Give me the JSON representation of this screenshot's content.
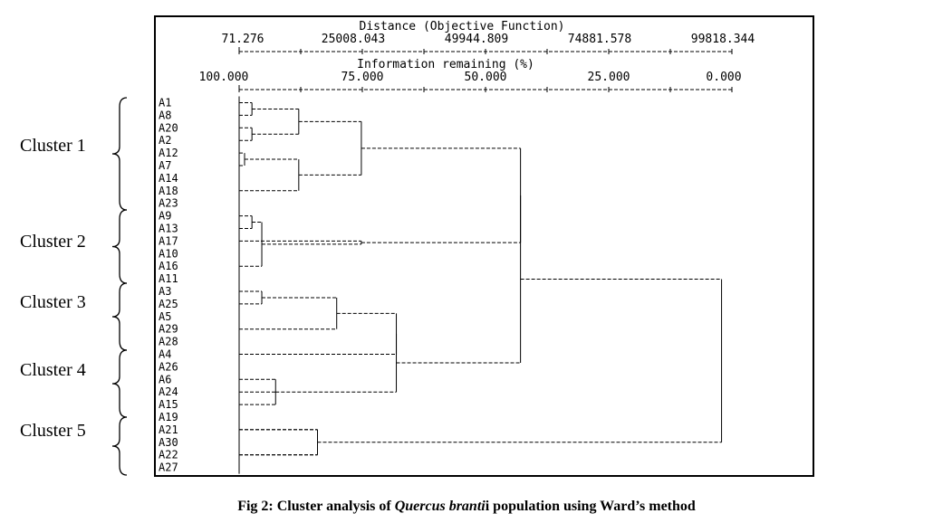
{
  "chart_data": {
    "type": "dendrogram",
    "method": "Ward's method",
    "top_axis": {
      "label": "Distance (Objective Function)",
      "ticks": [
        "71.276",
        "25008.043",
        "49944.809",
        "74881.578",
        "99818.344"
      ],
      "range": [
        71.276,
        99818.344
      ]
    },
    "bottom_axis": {
      "label": "Information remaining (%)",
      "ticks": [
        "100.000",
        "75.000",
        "50.000",
        "25.000",
        "0.000"
      ],
      "range": [
        100,
        0
      ]
    },
    "leaves": [
      "A1",
      "A8",
      "A20",
      "A2",
      "A12",
      "A7",
      "A14",
      "A18",
      "A23",
      "A9",
      "A13",
      "A17",
      "A10",
      "A16",
      "A11",
      "A3",
      "A25",
      "A5",
      "A29",
      "A28",
      "A4",
      "A26",
      "A6",
      "A24",
      "A15",
      "A19",
      "A21",
      "A30",
      "A22",
      "A27"
    ],
    "merges": [
      {
        "children": [
          "A1",
          "A8"
        ],
        "info_remaining": 97.4
      },
      {
        "children": [
          "A20",
          "A2"
        ],
        "info_remaining": 97.4
      },
      {
        "children": [
          "A1,A8",
          "A20,A2"
        ],
        "info_remaining": 87.9
      },
      {
        "children": [
          "A12",
          "A7"
        ],
        "info_remaining": 98.9
      },
      {
        "children": [
          "A12,A7",
          "A14,A18,A23"
        ],
        "info_remaining": 87.9
      },
      {
        "children": [
          "A1..A2",
          "A12..A23"
        ],
        "info_remaining": 75.2
      },
      {
        "children": [
          "A9",
          "A13"
        ],
        "info_remaining": 97.4
      },
      {
        "children": [
          "A9,A13",
          "A10,A16,A11"
        ],
        "info_remaining": 95.4
      },
      {
        "children": [
          "A9..A11",
          "A17"
        ],
        "info_remaining": 75.2
      },
      {
        "children": [
          "Cluster 1",
          "Cluster 2"
        ],
        "info_remaining": 42.9
      },
      {
        "children": [
          "A3",
          "A25"
        ],
        "info_remaining": 95.4
      },
      {
        "children": [
          "A3,A25",
          "A5,A29,A28"
        ],
        "info_remaining": 80.2
      },
      {
        "children": [
          "A3..A28",
          "A4"
        ],
        "info_remaining": 68.1
      },
      {
        "children": [
          "A26",
          "A6",
          "A24",
          "A15"
        ],
        "info_remaining": 92.6
      },
      {
        "children": [
          "A3..A4",
          "A26..A15"
        ],
        "info_remaining": 68.1
      },
      {
        "children": [
          "Cluster 1+2",
          "Cluster 3+4"
        ],
        "info_remaining": 42.9
      },
      {
        "children": [
          "A19",
          "A21",
          "A30"
        ],
        "info_remaining": 84.1
      },
      {
        "children": [
          "A22",
          "A27"
        ],
        "info_remaining": 84.1
      },
      {
        "children": [
          "Clusters 1-4",
          "Cluster 5"
        ],
        "info_remaining": 2.1
      }
    ]
  },
  "cluster_labels": [
    "Cluster 1",
    "Cluster 2",
    "Cluster 3",
    "Cluster 4",
    "Cluster 5"
  ],
  "caption": {
    "prefix": "Fig 2: Cluster analysis of ",
    "species": "Quercus branti",
    "species_suffix": "i",
    "suffix": " population using Ward’s method"
  }
}
